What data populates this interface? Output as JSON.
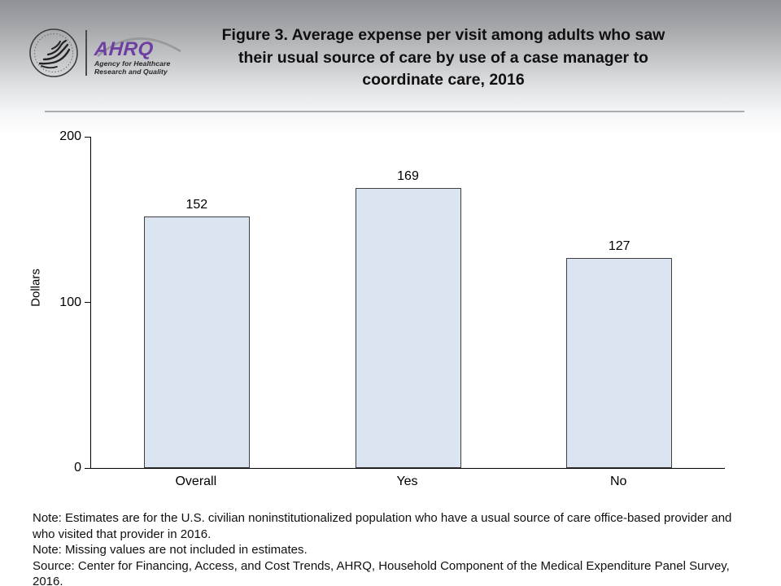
{
  "header": {
    "icons": {
      "hhs_seal": "hhs-eagle-seal-icon",
      "ahrq_swoosh": "ahrq-swoosh-arc-icon"
    },
    "ahrq": {
      "acronym": "AHRQ",
      "tagline1": "Agency for Healthcare",
      "tagline2": "Research and Quality"
    },
    "title_lines": [
      "Figure 3. Average expense per visit among adults who saw",
      "their usual source of care by use of a case manager to",
      "coordinate care, 2016"
    ]
  },
  "chart_data": {
    "type": "bar",
    "title": "Figure 3. Average expense per visit among adults who saw their usual source of care by use of a case manager to coordinate care, 2016",
    "categories": [
      "Overall",
      "Yes",
      "No"
    ],
    "values": [
      152,
      169,
      127
    ],
    "xlabel": "",
    "ylabel": "Dollars",
    "ylim": [
      0,
      200
    ],
    "yticks": [
      0,
      100,
      200
    ],
    "grid": false,
    "legend": false,
    "bar_fill": "#dbe5f1",
    "bar_border": "#404040"
  },
  "colors": {
    "header_gradient_top": "#8e9196",
    "divider_gray": "#a9abad",
    "ahrq_purple": "#6e3fa3",
    "axis_black": "#000000"
  },
  "notes": [
    "Note: Estimates are for the U.S. civilian noninstitutionalized population who have a usual source of care office-based provider and who visited that provider in 2016.",
    "Note: Missing values are not included in estimates.",
    "Source: Center for Financing, Access, and Cost Trends, AHRQ, Household Component of the Medical Expenditure Panel Survey, 2016."
  ]
}
